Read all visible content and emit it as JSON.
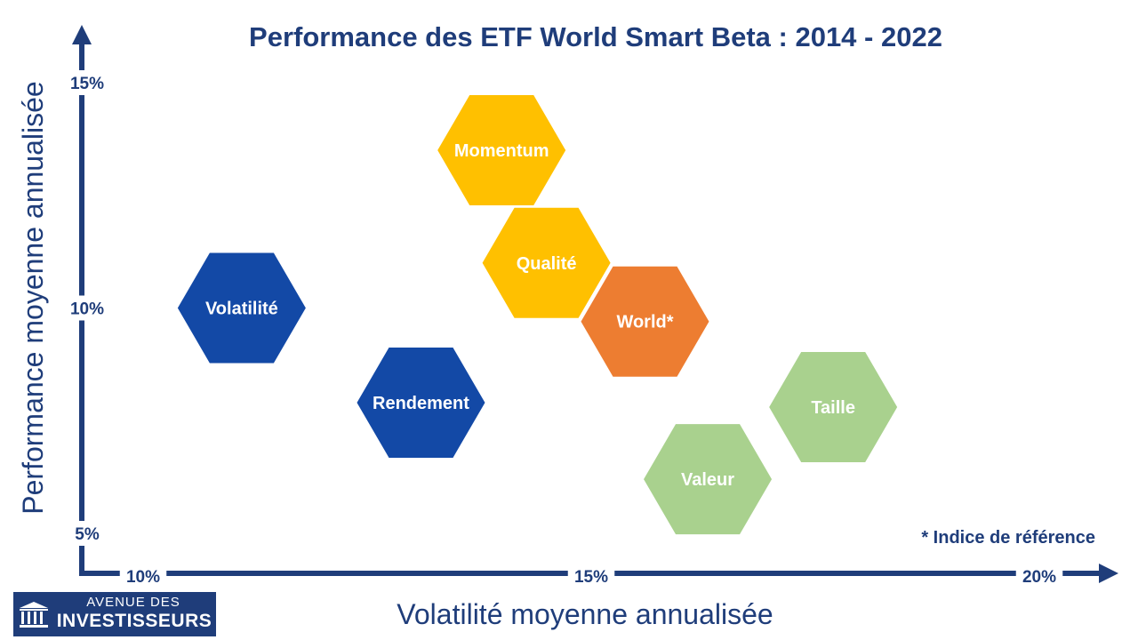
{
  "chart_data": {
    "type": "scatter",
    "title": "Performance des ETF World Smart Beta : 2014 - 2022",
    "xlabel": "Volatilité moyenne annualisée",
    "ylabel": "Performance moyenne annualisée",
    "xlim": [
      10,
      20
    ],
    "ylim": [
      5,
      15
    ],
    "x_ticks": [
      {
        "value": 10,
        "label": "10%"
      },
      {
        "value": 15,
        "label": "15%"
      },
      {
        "value": 20,
        "label": "20%"
      }
    ],
    "y_ticks": [
      {
        "value": 5,
        "label": "5%"
      },
      {
        "value": 10,
        "label": "10%"
      },
      {
        "value": 15,
        "label": "15%"
      }
    ],
    "grid": false,
    "points": [
      {
        "label": "Momentum",
        "x": 14.0,
        "y": 13.5,
        "color": "#ffc000"
      },
      {
        "label": "Qualité",
        "x": 14.5,
        "y": 11.0,
        "color": "#ffc000"
      },
      {
        "label": "World*",
        "x": 15.6,
        "y": 9.7,
        "color": "#ed7d31"
      },
      {
        "label": "Volatilité",
        "x": 11.1,
        "y": 10.0,
        "color": "#1349a6"
      },
      {
        "label": "Rendement",
        "x": 13.1,
        "y": 7.9,
        "color": "#1349a6"
      },
      {
        "label": "Taille",
        "x": 17.7,
        "y": 7.8,
        "color": "#a9d18e"
      },
      {
        "label": "Valeur",
        "x": 16.3,
        "y": 6.2,
        "color": "#a9d18e"
      }
    ],
    "annotation": "* Indice de référence"
  },
  "colors": {
    "title": "#1f3d7a",
    "axis": "#1f3d7a",
    "text": "#1f3d7a"
  },
  "logo": {
    "line1": "AVENUE DES",
    "line2": "INVESTISSEURS",
    "icon": "bank-columns-icon"
  }
}
